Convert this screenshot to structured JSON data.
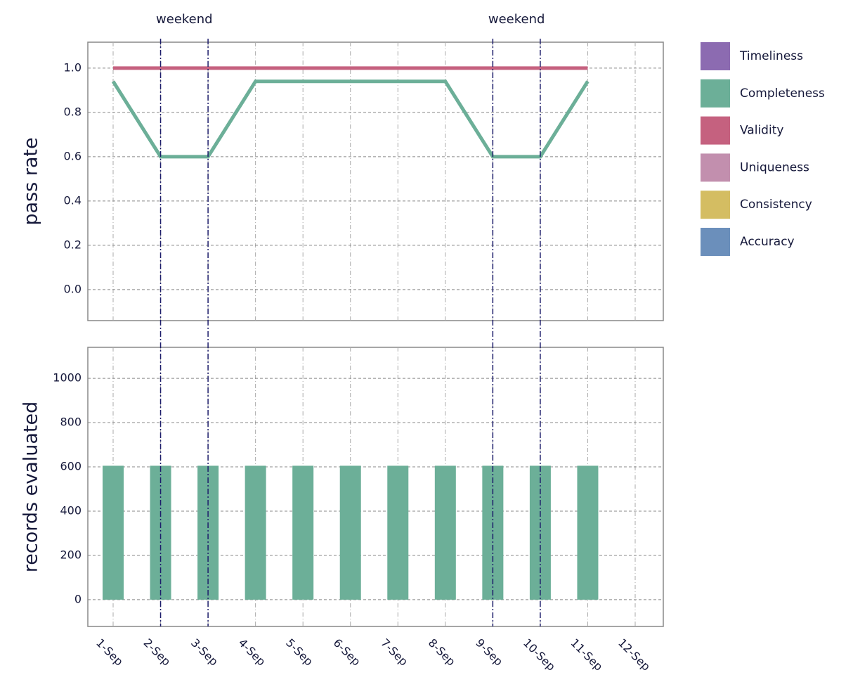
{
  "chart_data": [
    {
      "type": "line",
      "ylabel": "pass rate",
      "categories": [
        "1-Sep",
        "2-Sep",
        "3-Sep",
        "4-Sep",
        "5-Sep",
        "6-Sep",
        "7-Sep",
        "8-Sep",
        "9-Sep",
        "10-Sep",
        "11-Sep",
        "12-Sep"
      ],
      "series": [
        {
          "name": "Validity",
          "color": "#c5617f",
          "values": [
            1.0,
            1.0,
            1.0,
            1.0,
            1.0,
            1.0,
            1.0,
            1.0,
            1.0,
            1.0,
            1.0,
            null
          ]
        },
        {
          "name": "Completeness",
          "color": "#6caf98",
          "values": [
            0.94,
            0.6,
            0.6,
            0.94,
            0.94,
            0.94,
            0.94,
            0.94,
            0.6,
            0.6,
            0.94,
            null
          ]
        }
      ],
      "ylim": [
        -0.14,
        1.117
      ],
      "yticks": [
        {
          "value": 0,
          "label": "0.0"
        },
        0.2,
        0.4,
        0.6,
        0.8,
        {
          "value": 1,
          "label": "1.0"
        }
      ],
      "grid": true,
      "weekend_lines": [
        "2-Sep",
        "3-Sep",
        "9-Sep",
        "10-Sep"
      ],
      "annotations": [
        {
          "text": "weekend",
          "at": [
            "2-Sep",
            "3-Sep"
          ]
        },
        {
          "text": "weekend",
          "at": [
            "9-Sep",
            "10-Sep"
          ]
        }
      ],
      "legend": [
        {
          "name": "Timeliness",
          "color": "#8c6bb1"
        },
        {
          "name": "Completeness",
          "color": "#6caf98"
        },
        {
          "name": "Validity",
          "color": "#c5617f"
        },
        {
          "name": "Uniqueness",
          "color": "#c28fae"
        },
        {
          "name": "Consistency",
          "color": "#d4bd62"
        },
        {
          "name": "Accuracy",
          "color": "#6b8fbb"
        }
      ]
    },
    {
      "type": "bar",
      "ylabel": "records evaluated",
      "categories": [
        "1-Sep",
        "2-Sep",
        "3-Sep",
        "4-Sep",
        "5-Sep",
        "6-Sep",
        "7-Sep",
        "8-Sep",
        "9-Sep",
        "10-Sep",
        "11-Sep",
        "12-Sep"
      ],
      "values": [
        605,
        605,
        605,
        605,
        605,
        605,
        605,
        605,
        605,
        605,
        605,
        null
      ],
      "color": "#6caf98",
      "ylim": [
        -121,
        1140
      ],
      "yticks": [
        0,
        200,
        400,
        600,
        800,
        1000
      ],
      "grid": true
    }
  ]
}
